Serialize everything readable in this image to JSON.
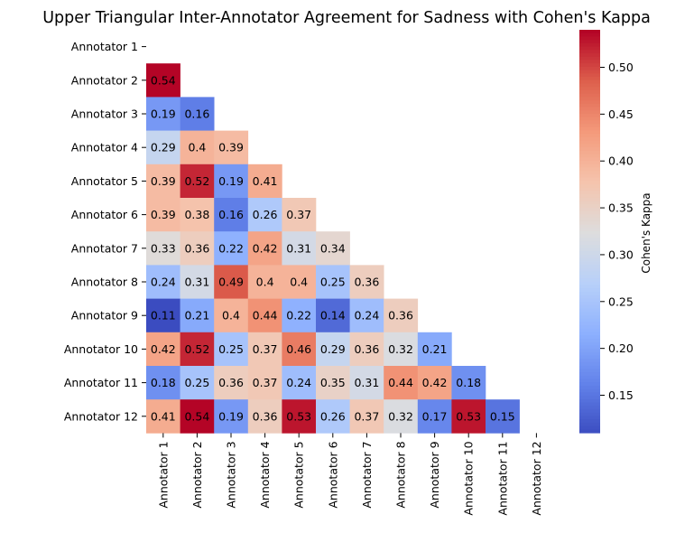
{
  "chart_data": {
    "type": "heatmap",
    "title": "Upper Triangular Inter-Annotator Agreement for Sadness with Cohen's Kappa",
    "row_labels": [
      "Annotator 1",
      "Annotator 2",
      "Annotator 3",
      "Annotator 4",
      "Annotator 5",
      "Annotator 6",
      "Annotator 7",
      "Annotator 8",
      "Annotator 9",
      "Annotator 10",
      "Annotator 11",
      "Annotator 12"
    ],
    "col_labels": [
      "Annotator 1",
      "Annotator 2",
      "Annotator 3",
      "Annotator 4",
      "Annotator 5",
      "Annotator 6",
      "Annotator 7",
      "Annotator 8",
      "Annotator 9",
      "Annotator 10",
      "Annotator 11",
      "Annotator 12"
    ],
    "values": [
      [],
      [
        0.54
      ],
      [
        0.19,
        0.16
      ],
      [
        0.29,
        0.4,
        0.39
      ],
      [
        0.39,
        0.52,
        0.19,
        0.41
      ],
      [
        0.39,
        0.38,
        0.16,
        0.26,
        0.37
      ],
      [
        0.33,
        0.36,
        0.22,
        0.42,
        0.31,
        0.34
      ],
      [
        0.24,
        0.31,
        0.49,
        0.4,
        0.4,
        0.25,
        0.36
      ],
      [
        0.11,
        0.21,
        0.4,
        0.44,
        0.22,
        0.14,
        0.24,
        0.36
      ],
      [
        0.42,
        0.52,
        0.25,
        0.37,
        0.46,
        0.29,
        0.36,
        0.32,
        0.21
      ],
      [
        0.18,
        0.25,
        0.36,
        0.37,
        0.24,
        0.35,
        0.31,
        0.44,
        0.42,
        0.18
      ],
      [
        0.41,
        0.54,
        0.19,
        0.36,
        0.53,
        0.26,
        0.37,
        0.32,
        0.17,
        0.53,
        0.15
      ]
    ],
    "colormap": "coolwarm",
    "vmin": 0.11,
    "vmax": 0.54,
    "colorbar": {
      "label": "Cohen's Kappa",
      "ticks": [
        0.15,
        0.2,
        0.25,
        0.3,
        0.35,
        0.4,
        0.45,
        0.5
      ],
      "tick_labels": [
        "0.15",
        "0.20",
        "0.25",
        "0.30",
        "0.35",
        "0.40",
        "0.45",
        "0.50"
      ]
    }
  }
}
